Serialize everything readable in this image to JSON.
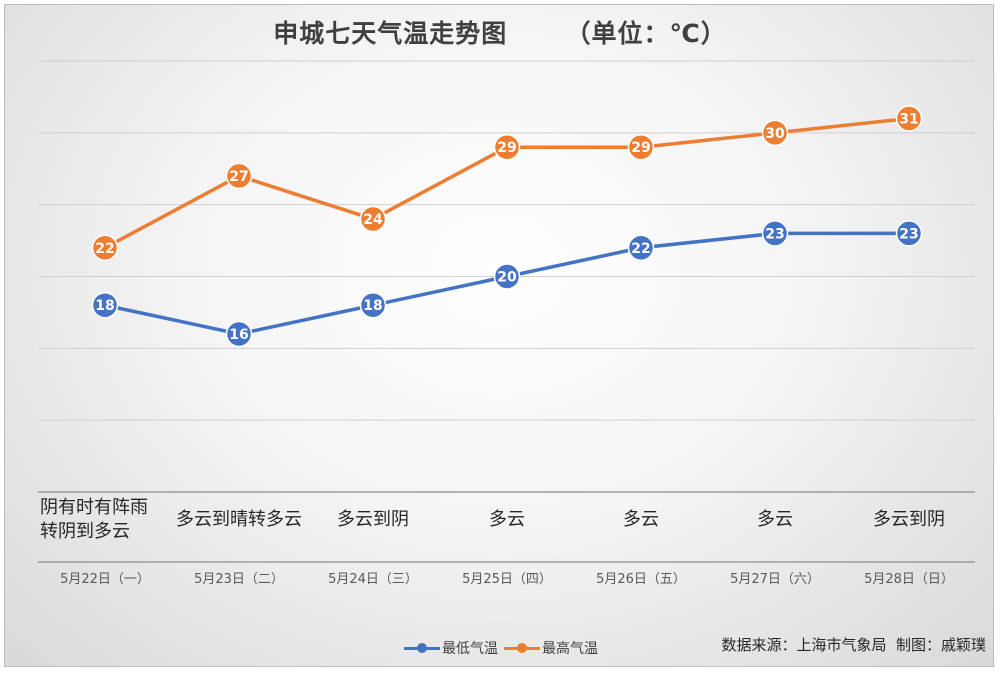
{
  "chart_data": {
    "type": "line",
    "title": "申城七天气温走势图      （单位：℃）",
    "categories": [
      "5月22日（一）",
      "5月23日（二）",
      "5月24日（三）",
      "5月25日（四）",
      "5月26日（五）",
      "5月27日（六）",
      "5月28日（日）"
    ],
    "weather": [
      "阴有时有阵雨\n转阴到多云",
      "多云到晴转多云",
      "多云到阴",
      "多云",
      "多云",
      "多云",
      "多云到阴"
    ],
    "series": [
      {
        "name": "最低气温",
        "color": "#4472c4",
        "values": [
          18,
          16,
          18,
          20,
          22,
          23,
          23
        ]
      },
      {
        "name": "最高气温",
        "color": "#ed7d31",
        "values": [
          22,
          27,
          24,
          29,
          29,
          30,
          31
        ]
      }
    ],
    "ylim": [
      5,
      35
    ],
    "grid": true,
    "legend": "bottom"
  },
  "source": "数据来源：上海市气象局  制图：戚颖璞"
}
